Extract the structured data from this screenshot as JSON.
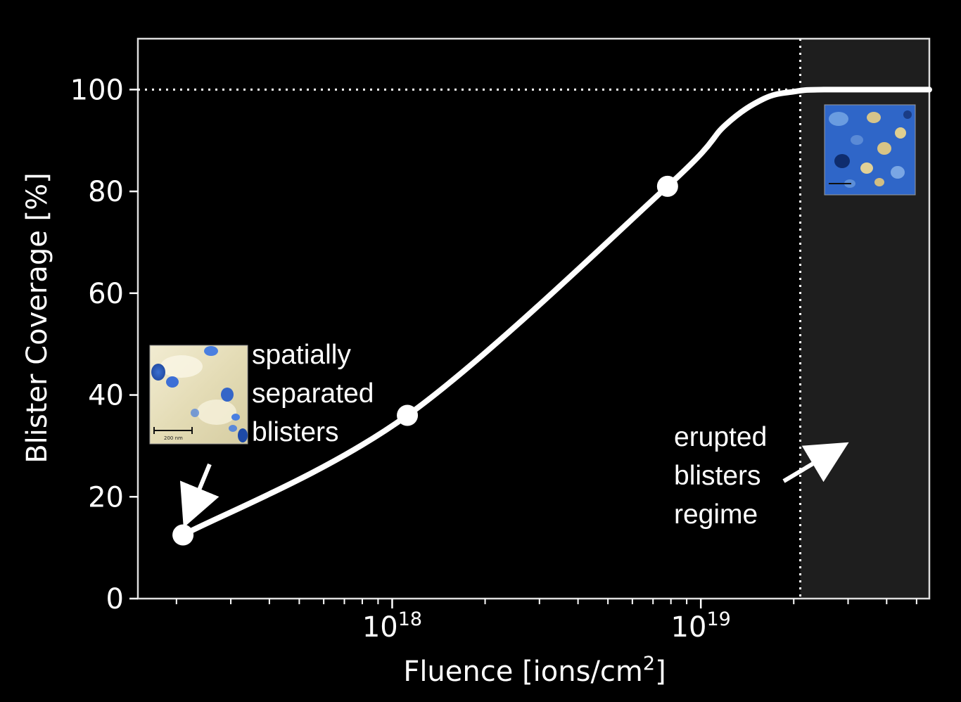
{
  "chart_data": {
    "type": "line",
    "xlabel": "Fluence [ions/cm",
    "xlabel_sup": "2",
    "xlabel_end": "]",
    "ylabel": "Blister Coverage [%]",
    "x_scale": "log",
    "xlim": [
      1.5e+17,
      5.5e+19
    ],
    "ylim": [
      0,
      110
    ],
    "y_ticks": [
      0,
      20,
      40,
      60,
      80,
      100
    ],
    "y_tick_labels": [
      "0",
      "20",
      "40",
      "60",
      "80",
      "100"
    ],
    "x_major_ticks": [
      {
        "value": 1e+18,
        "base": "10",
        "exp": "18"
      },
      {
        "value": 1e+19,
        "base": "10",
        "exp": "19"
      }
    ],
    "grid": false,
    "series": [
      {
        "points": [
          {
            "x": 2.1e+17,
            "y": 12.5
          },
          {
            "x": 1.12e+18,
            "y": 36
          },
          {
            "x": 7.8e+18,
            "y": 81
          }
        ],
        "fit_curve": [
          {
            "x": 2.1e+17,
            "y": 12.5
          },
          {
            "x": 1.12e+18,
            "y": 36
          },
          {
            "x": 7.8e+18,
            "y": 81
          },
          {
            "x": 1.2e+19,
            "y": 93
          },
          {
            "x": 1.6e+19,
            "y": 98.2
          },
          {
            "x": 2e+19,
            "y": 99.6
          },
          {
            "x": 2.5e+19,
            "y": 100
          },
          {
            "x": 5.5e+19,
            "y": 100
          }
        ]
      }
    ],
    "reference_line_y": 100,
    "regime_boundary_x": 2.1e+19,
    "annotations": [
      {
        "lines": [
          "spatially",
          "separated",
          "blisters"
        ]
      },
      {
        "lines": [
          "erupted",
          "blisters",
          "regime"
        ]
      }
    ],
    "inset_scale_label": "200 nm"
  },
  "colors": {
    "background": "#000000",
    "axes": "#ffffff",
    "shaded_regime": "#1e1e1e",
    "inset_light": "#ece6c8",
    "inset_dark": "#2b5cc4"
  }
}
